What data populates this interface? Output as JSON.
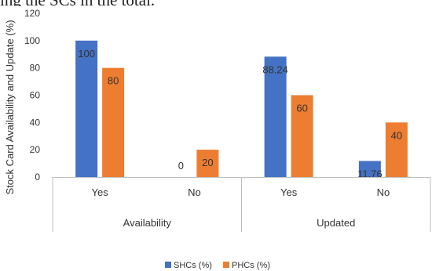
{
  "cutoff_text": "ing the SCs in the total.",
  "chart_data": {
    "type": "bar",
    "ylabel": "Stock Card Availability and Update (%)",
    "ylim": [
      0,
      120
    ],
    "yticks": [
      "0",
      "20",
      "40",
      "60",
      "80",
      "100",
      "120"
    ],
    "groups": [
      {
        "label": "Availability",
        "categories": [
          "Yes",
          "No"
        ]
      },
      {
        "label": "Updated",
        "categories": [
          "Yes",
          "No"
        ]
      }
    ],
    "categories": [
      "Yes",
      "No",
      "Yes",
      "No"
    ],
    "series": [
      {
        "name": "SHCs (%)",
        "color": "#4472C4",
        "values": [
          100,
          0,
          88.24,
          11.76
        ],
        "labels": [
          "100",
          "0",
          "88.24",
          "11.76"
        ]
      },
      {
        "name": "PHCs (%)",
        "color": "#ED7D31",
        "values": [
          80,
          20,
          60,
          40
        ],
        "labels": [
          "80",
          "20",
          "60",
          "40"
        ]
      }
    ],
    "legend_position": "bottom",
    "grid": false
  }
}
